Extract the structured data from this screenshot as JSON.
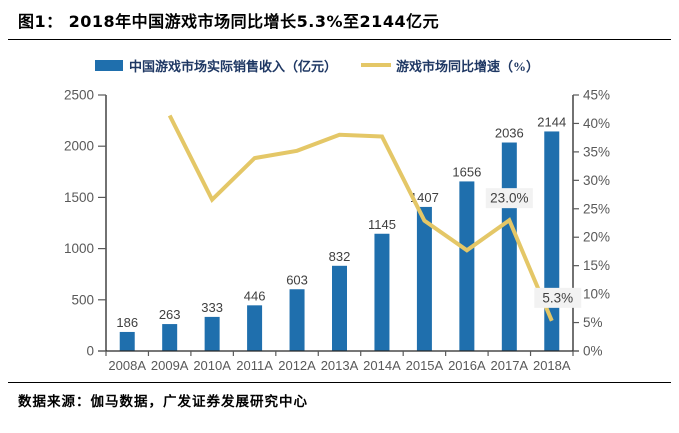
{
  "header": {
    "figure_label": "图1：",
    "title": "2018年中国游戏市场同比增长5.3%至2144亿元"
  },
  "legend": {
    "bar_label": "中国游戏市场实际销售收入（亿元）",
    "line_label": "游戏市场同比增速（%）"
  },
  "footer": {
    "source": "数据来源：伽马数据，广发证券发展研究中心"
  },
  "colors": {
    "bar": "#1F6FAD",
    "line": "#E4C767",
    "legend_text": "#1F3864",
    "axis_text": "#595959",
    "value_label": "#404040",
    "annotation_bg": "#F2F2F2",
    "annotation_text": "#404040",
    "axis_line": "#262626",
    "tick": "#595959"
  },
  "chart_data": {
    "type": "bar",
    "subtype": "bar-with-line-overlay",
    "title": "2018年中国游戏市场同比增长5.3%至2144亿元",
    "grid": false,
    "legend_position": "top",
    "categories": [
      "2008A",
      "2009A",
      "2010A",
      "2011A",
      "2012A",
      "2013A",
      "2014A",
      "2015A",
      "2016A",
      "2017A",
      "2018A"
    ],
    "series": [
      {
        "name": "中国游戏市场实际销售收入（亿元）",
        "type": "bar",
        "axis": "left",
        "values": [
          186,
          263,
          333,
          446,
          603,
          832,
          1145,
          1407,
          1656,
          2036,
          2144
        ]
      },
      {
        "name": "游戏市场同比增速（%）",
        "type": "line",
        "axis": "right",
        "values": [
          null,
          41.4,
          26.6,
          33.9,
          35.2,
          38.0,
          37.7,
          22.9,
          17.7,
          23.0,
          5.3
        ]
      }
    ],
    "bar_labels": [
      "186",
      "263",
      "333",
      "446",
      "603",
      "832",
      "1145",
      "1407",
      "1656",
      "2036",
      "2144"
    ],
    "left_axis": {
      "label": "亿元",
      "min": 0,
      "max": 2500,
      "step": 500,
      "ticks": [
        "0",
        "500",
        "1000",
        "1500",
        "2000",
        "2500"
      ]
    },
    "right_axis": {
      "label": "%",
      "min": 0,
      "max": 45,
      "step": 5,
      "ticks": [
        "0%",
        "5%",
        "10%",
        "15%",
        "20%",
        "25%",
        "30%",
        "35%",
        "40%",
        "45%"
      ]
    },
    "annotations": [
      {
        "category": "2017A",
        "index": 9,
        "text": "23.0%"
      },
      {
        "category": "2018A",
        "index": 10,
        "text": "5.3%"
      }
    ]
  }
}
